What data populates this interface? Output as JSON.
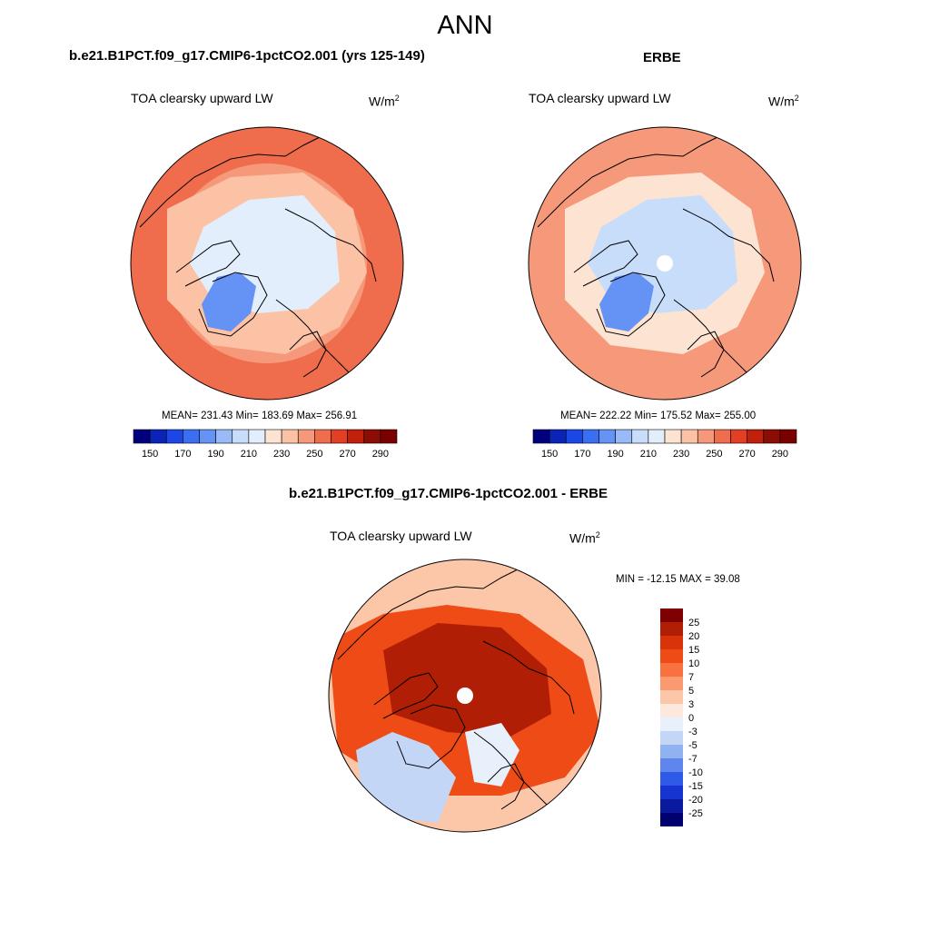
{
  "figure": {
    "title": "ANN"
  },
  "chart_data": [
    {
      "type": "heatmap",
      "projection": "north-polar-stereographic",
      "title": "b.e21.B1PCT.f09_g17.CMIP6-1pctCO2.001 (yrs 125-149)",
      "variable": "TOA clearsky upward LW",
      "units_base": "W/m",
      "units_exp": "2",
      "stats_text": "MEAN= 231.43  Min= 183.69  Max= 256.91",
      "mean": 231.43,
      "min": 183.69,
      "max": 256.91,
      "colorbar": {
        "levels": [
          150,
          160,
          170,
          180,
          190,
          200,
          210,
          220,
          230,
          240,
          250,
          260,
          270,
          280,
          290
        ],
        "tick_labels": [
          "150",
          "170",
          "190",
          "210",
          "230",
          "250",
          "270",
          "290"
        ],
        "colors": [
          "#00007f",
          "#0a24b7",
          "#1c46e6",
          "#3a6ff2",
          "#6593f5",
          "#98bbf7",
          "#c8ddfa",
          "#e3eefc",
          "#fde3d2",
          "#fbc2a5",
          "#f6987a",
          "#ef6c4d",
          "#e33f24",
          "#c0200c",
          "#8c0d03",
          "#7a0000"
        ]
      },
      "field_regions": [
        {
          "region": "greenland",
          "value": 188
        },
        {
          "region": "arctic-ocean",
          "value": 215
        },
        {
          "region": "continents-high-lat",
          "value": 238
        },
        {
          "region": "mid-latitudes",
          "value": 252
        }
      ]
    },
    {
      "type": "heatmap",
      "projection": "north-polar-stereographic",
      "title": "ERBE",
      "variable": "TOA clearsky upward LW",
      "units_base": "W/m",
      "units_exp": "2",
      "stats_text": "MEAN= 222.22  Min= 175.52  Max= 255.00",
      "mean": 222.22,
      "min": 175.52,
      "max": 255.0,
      "colorbar": {
        "levels": [
          150,
          160,
          170,
          180,
          190,
          200,
          210,
          220,
          230,
          240,
          250,
          260,
          270,
          280,
          290
        ],
        "tick_labels": [
          "150",
          "170",
          "190",
          "210",
          "230",
          "250",
          "270",
          "290"
        ],
        "colors": [
          "#00007f",
          "#0a24b7",
          "#1c46e6",
          "#3a6ff2",
          "#6593f5",
          "#98bbf7",
          "#c8ddfa",
          "#e3eefc",
          "#fde3d2",
          "#fbc2a5",
          "#f6987a",
          "#ef6c4d",
          "#e33f24",
          "#c0200c",
          "#8c0d03",
          "#7a0000"
        ]
      },
      "field_regions": [
        {
          "region": "greenland",
          "value": 180
        },
        {
          "region": "arctic-ocean",
          "value": 200
        },
        {
          "region": "continents-high-lat",
          "value": 225
        },
        {
          "region": "mid-latitudes",
          "value": 248
        }
      ]
    },
    {
      "type": "heatmap",
      "projection": "north-polar-stereographic",
      "title": "b.e21.B1PCT.f09_g17.CMIP6-1pctCO2.001 - ERBE",
      "variable": "TOA clearsky upward LW",
      "units_base": "W/m",
      "units_exp": "2",
      "stats_text": "MIN = -12.15 MAX =  39.08",
      "min": -12.15,
      "max": 39.08,
      "colorbar": {
        "orientation": "vertical",
        "tick_labels": [
          "25",
          "20",
          "15",
          "10",
          "7",
          "5",
          "3",
          "0",
          "-3",
          "-5",
          "-7",
          "-10",
          "-15",
          "-20",
          "-25"
        ],
        "colors": [
          "#7f0000",
          "#b01f05",
          "#d83409",
          "#ee4b17",
          "#f8713e",
          "#fb9a71",
          "#fcc6a8",
          "#fce8dc",
          "#e8f0fb",
          "#c3d6f6",
          "#91b2f1",
          "#5e86ec",
          "#2f5ae8",
          "#1534d2",
          "#0a1a9f",
          "#00006e"
        ]
      },
      "field_regions": [
        {
          "region": "arctic-ocean",
          "value": 20
        },
        {
          "region": "north-america",
          "value": 12
        },
        {
          "region": "eurasia-east",
          "value": -5
        },
        {
          "region": "mid-latitudes",
          "value": 4
        }
      ]
    }
  ]
}
